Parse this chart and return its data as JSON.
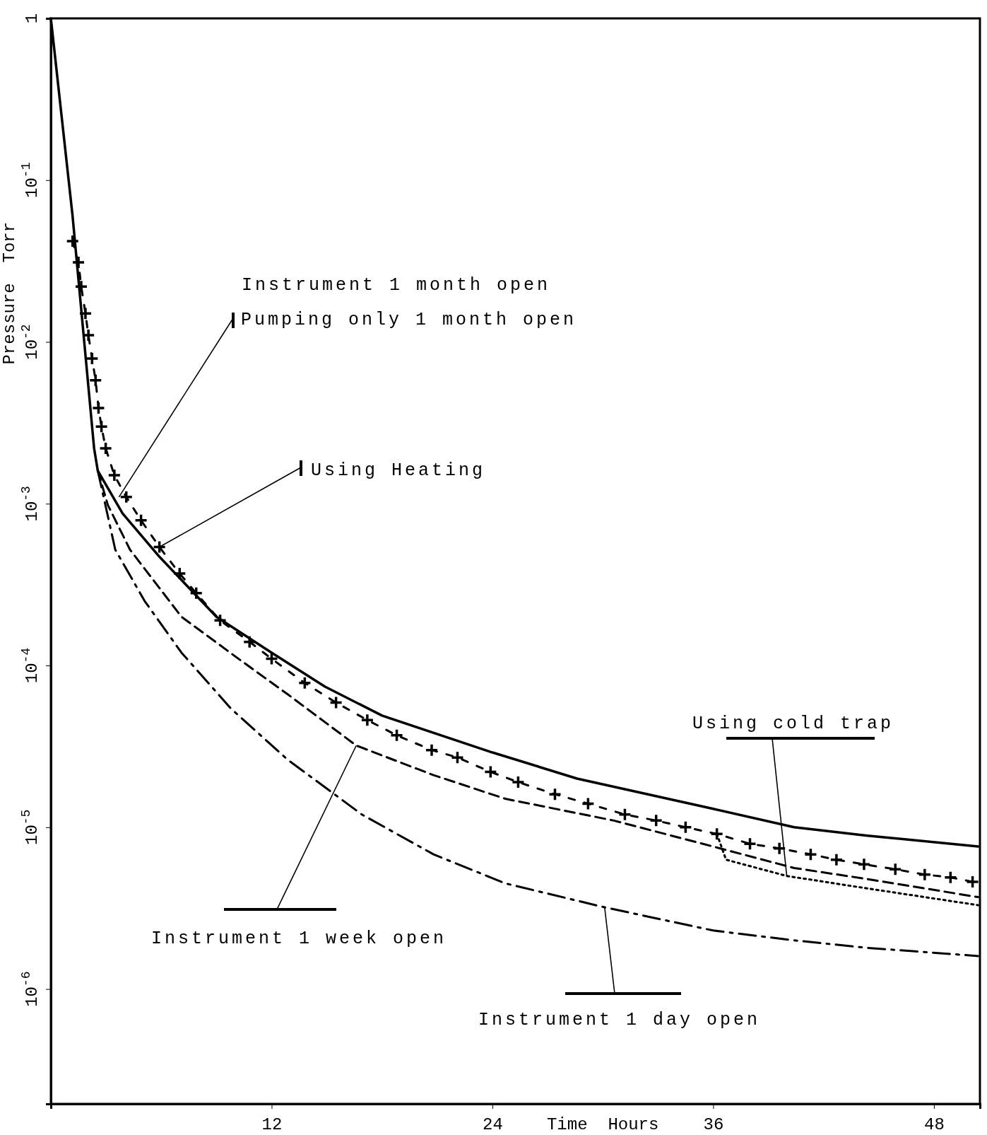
{
  "chart_data": {
    "type": "line",
    "xlabel": "Time  Hours",
    "ylabel": "Pressure  Torr",
    "log": true,
    "xlim": [
      0,
      50.5
    ],
    "ylim": [
      1.95e-07,
      1
    ],
    "xticks": [
      12,
      24,
      36,
      48
    ],
    "yticks": [
      {
        "value": 1,
        "label": "1"
      },
      {
        "value": 0.1,
        "label": "10$^{-1}$"
      },
      {
        "value": 0.01,
        "label": "10$^{-2}$"
      },
      {
        "value": 0.001,
        "label": "10$^{-3}$"
      },
      {
        "value": 0.0001,
        "label": "10$^{-4}$"
      },
      {
        "value": 1e-05,
        "label": "10$^{-5}$"
      },
      {
        "value": 1e-06,
        "label": "10$^{-6}$"
      }
    ],
    "series": [
      {
        "color": "#000000",
        "line_style": "solid",
        "x": [
          0,
          1.18,
          2.35,
          2.55,
          3.9,
          5.9,
          9.0,
          12,
          14.9,
          18,
          24,
          28.6,
          36,
          40.4,
          44.3,
          50.4
        ],
        "values": [
          1,
          0.06,
          0.0022,
          0.0016,
          0.00087,
          0.00047,
          0.0002,
          0.00012,
          7.4e-05,
          4.9e-05,
          2.9e-05,
          2e-05,
          1.3e-05,
          1e-05,
          8.9e-06,
          7.6e-06
        ]
      },
      {
        "color": "#000000",
        "line_style": "dashed",
        "marker": "cross",
        "x": [
          1.18,
          1.5,
          1.65,
          1.88,
          2.04,
          2.24,
          2.43,
          2.59,
          2.75,
          2.98,
          3.45,
          4.1,
          4.9,
          5.9,
          7.0,
          7.9,
          9.2,
          10.8,
          12,
          13.8,
          15.5,
          17.2,
          18.8,
          20.7,
          22.1,
          23.9,
          25.4,
          27.4,
          29.2,
          31.2,
          32.9,
          34.5,
          36.2,
          38,
          39.6,
          41.3,
          42.7,
          44.2,
          45.9,
          47.5,
          48.9,
          50.1
        ],
        "values": [
          0.042,
          0.031,
          0.022,
          0.015,
          0.011,
          0.0079,
          0.0058,
          0.0039,
          0.003,
          0.0022,
          0.0015,
          0.0011,
          0.00079,
          0.00054,
          0.00037,
          0.00028,
          0.00019,
          0.00014,
          0.00011,
          7.8e-05,
          5.9e-05,
          4.6e-05,
          3.7e-05,
          3e-05,
          2.7e-05,
          2.2e-05,
          1.9e-05,
          1.6e-05,
          1.4e-05,
          1.2e-05,
          1.1e-05,
          1e-05,
          9.1e-06,
          7.9e-06,
          7.4e-06,
          6.8e-06,
          6.3e-06,
          5.9e-06,
          5.5e-06,
          5.1e-06,
          4.9e-06,
          4.6e-06
        ]
      },
      {
        "color": "#000000",
        "line_style": "dashed",
        "x": [
          2.55,
          3.1,
          4.3,
          7.1,
          10.2,
          12.9,
          16.6,
          20.8,
          24.7,
          30.6,
          36,
          40.4,
          44.3,
          50.4
        ],
        "values": [
          0.0016,
          0.00098,
          0.00052,
          0.0002,
          0.00011,
          6.6e-05,
          3.2e-05,
          2.1e-05,
          1.5e-05,
          1.1e-05,
          7.6e-06,
          5.6e-06,
          4.8e-06,
          3.7e-06
        ]
      },
      {
        "color": "#000000",
        "line_style": "dotted",
        "x": [
          36.2,
          36.7,
          40,
          44.3,
          50.4
        ],
        "values": [
          9.1e-06,
          6.3e-06,
          5e-06,
          4.2e-06,
          3.3e-06
        ]
      },
      {
        "color": "#000000",
        "line_style": "dashdot",
        "x": [
          2.55,
          3.5,
          5.1,
          7.1,
          9.8,
          12.9,
          16.9,
          20.8,
          24.7,
          30.1,
          36,
          40.4,
          44.3,
          50.4
        ],
        "values": [
          0.0016,
          0.00052,
          0.00025,
          0.00012,
          5.4e-05,
          2.6e-05,
          1.2e-05,
          6.8e-06,
          4.5e-06,
          3.2e-06,
          2.3e-06,
          2e-06,
          1.8e-06,
          1.6e-06
        ]
      }
    ],
    "annotations": [
      "Instrument 1 month open",
      {
        "text": "Pumping only 1 month open",
        "x": 3.7,
        "y": 0.0011
      },
      {
        "text": "Using Heating",
        "x": 5.9,
        "y": 0.00054
      },
      {
        "text": "Using cold trap",
        "x": 40,
        "y": 5e-06
      },
      {
        "text": "Instrument 1 week open",
        "x": 16.6,
        "y": 3.2e-05
      },
      {
        "text": "Instrument 1 day open",
        "x": 30.1,
        "y": 3.2e-06
      }
    ]
  }
}
